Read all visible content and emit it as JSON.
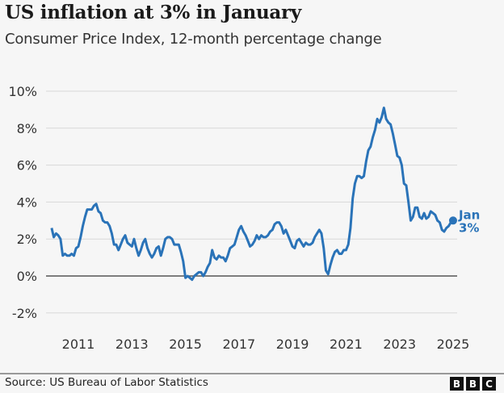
{
  "chart_data": {
    "type": "line",
    "title": "US inflation at 3% in January",
    "subtitle": "Consumer Price Index, 12-month percentage change",
    "xlabel": "",
    "ylabel": "",
    "ylim": [
      -2,
      10
    ],
    "xlim": [
      "2010-01",
      "2025-01"
    ],
    "yticks": [
      -2,
      0,
      2,
      4,
      6,
      8,
      10
    ],
    "ytick_labels": [
      "-2%",
      "0%",
      "2%",
      "4%",
      "6%",
      "8%",
      "10%"
    ],
    "xticks": [
      2011,
      2013,
      2015,
      2017,
      2019,
      2021,
      2023,
      2025
    ],
    "xtick_labels": [
      "2011",
      "2013",
      "2015",
      "2017",
      "2019",
      "2021",
      "2023",
      "2025"
    ],
    "grid": true,
    "series": [
      {
        "name": "CPI 12-month change",
        "color": "#2a73b8",
        "start": "2010-01",
        "frequency": "monthly",
        "values": [
          2.6,
          2.1,
          2.3,
          2.2,
          2.0,
          1.1,
          1.2,
          1.1,
          1.1,
          1.2,
          1.1,
          1.5,
          1.6,
          2.1,
          2.7,
          3.2,
          3.6,
          3.6,
          3.6,
          3.8,
          3.9,
          3.5,
          3.4,
          3.0,
          2.9,
          2.9,
          2.7,
          2.3,
          1.7,
          1.7,
          1.4,
          1.7,
          2.0,
          2.2,
          1.8,
          1.7,
          1.6,
          2.0,
          1.5,
          1.1,
          1.4,
          1.8,
          2.0,
          1.5,
          1.2,
          1.0,
          1.2,
          1.5,
          1.6,
          1.1,
          1.5,
          2.0,
          2.1,
          2.1,
          2.0,
          1.7,
          1.7,
          1.7,
          1.3,
          0.8,
          -0.1,
          0.0,
          -0.1,
          -0.2,
          0.0,
          0.1,
          0.2,
          0.2,
          0.0,
          0.2,
          0.5,
          0.7,
          1.4,
          1.0,
          0.9,
          1.1,
          1.0,
          1.0,
          0.8,
          1.1,
          1.5,
          1.6,
          1.7,
          2.1,
          2.5,
          2.7,
          2.4,
          2.2,
          1.9,
          1.6,
          1.7,
          1.9,
          2.2,
          2.0,
          2.2,
          2.1,
          2.1,
          2.2,
          2.4,
          2.5,
          2.8,
          2.9,
          2.9,
          2.7,
          2.3,
          2.5,
          2.2,
          1.9,
          1.6,
          1.5,
          1.9,
          2.0,
          1.8,
          1.6,
          1.8,
          1.7,
          1.7,
          1.8,
          2.1,
          2.3,
          2.5,
          2.3,
          1.5,
          0.3,
          0.1,
          0.6,
          1.0,
          1.3,
          1.4,
          1.2,
          1.2,
          1.4,
          1.4,
          1.7,
          2.6,
          4.2,
          5.0,
          5.4,
          5.4,
          5.3,
          5.4,
          6.2,
          6.8,
          7.0,
          7.5,
          7.9,
          8.5,
          8.3,
          8.6,
          9.1,
          8.5,
          8.3,
          8.2,
          7.7,
          7.1,
          6.5,
          6.4,
          6.0,
          5.0,
          4.9,
          4.0,
          3.0,
          3.2,
          3.7,
          3.7,
          3.2,
          3.1,
          3.4,
          3.1,
          3.2,
          3.5,
          3.4,
          3.3,
          3.0,
          2.9,
          2.5,
          2.4,
          2.6,
          2.7,
          2.9,
          3.0
        ]
      }
    ],
    "annotations": [
      {
        "line1": "Jan",
        "line2": "3%",
        "value": 3.0
      }
    ]
  },
  "footer": {
    "source": "Source: US Bureau of Labor Statistics",
    "logo": "BBC"
  }
}
